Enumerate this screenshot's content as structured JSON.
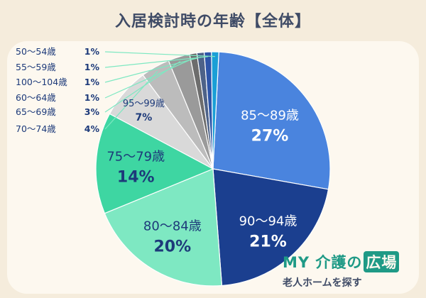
{
  "title": "入居検討時の年齢【全体】",
  "brand": {
    "name_prefix": "MY 介護の",
    "name_box": "広場",
    "tagline": "老人ホームを探す"
  },
  "chart_data": {
    "type": "pie",
    "title": "入居検討時の年齢【全体】",
    "slices": [
      {
        "label": "85〜89歳",
        "value": 27,
        "display": "27%",
        "color": "#4a84de",
        "label_color": "#ffffff"
      },
      {
        "label": "90〜94歳",
        "value": 21,
        "display": "21%",
        "color": "#1b3f8f",
        "label_color": "#ffffff"
      },
      {
        "label": "80〜84歳",
        "value": 20,
        "display": "20%",
        "color": "#7ee8c2",
        "label_color": "#1d3a7a"
      },
      {
        "label": "75〜79歳",
        "value": 14,
        "display": "14%",
        "color": "#3ed6a2",
        "label_color": "#1d3a7a"
      },
      {
        "label": "95〜99歳",
        "value": 7,
        "display": "7%",
        "color": "#d9d9d9",
        "label_color": "#1d3a7a"
      },
      {
        "label": "70〜74歳",
        "value": 4,
        "display": "4%",
        "color": "#bcbcbc",
        "label_color": "#1d3a7a"
      },
      {
        "label": "65〜69歳",
        "value": 3,
        "display": "3%",
        "color": "#9a9a9a",
        "label_color": "#1d3a7a"
      },
      {
        "label": "60〜64歳",
        "value": 1,
        "display": "1%",
        "color": "#6d6d6d",
        "label_color": "#1d3a7a"
      },
      {
        "label": "100〜104歳",
        "value": 1,
        "display": "1%",
        "color": "#4d6288",
        "label_color": "#1d3a7a"
      },
      {
        "label": "55〜59歳",
        "value": 1,
        "display": "1%",
        "color": "#2e55a8",
        "label_color": "#1d3a7a"
      },
      {
        "label": "50〜54歳",
        "value": 1,
        "display": "1%",
        "color": "#1a9fd6",
        "label_color": "#1d3a7a"
      }
    ]
  }
}
